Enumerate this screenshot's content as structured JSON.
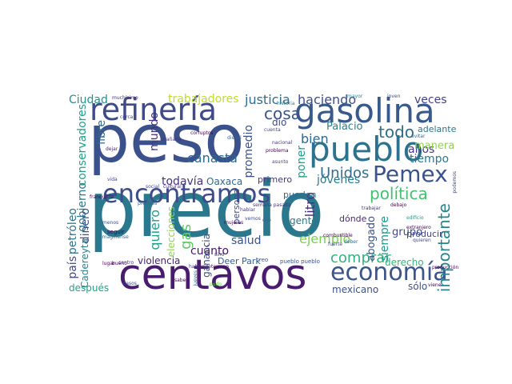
{
  "cloud": {
    "words": [
      {
        "text": "precio",
        "color": "#2a788e"
      },
      {
        "text": "peso",
        "color": "#3b518b"
      },
      {
        "text": "centavos",
        "color": "#481c6e"
      },
      {
        "text": "gasolina",
        "color": "#38598c"
      },
      {
        "text": "refinería",
        "color": "#3e4a89"
      },
      {
        "text": "pueblo",
        "color": "#2c728e"
      },
      {
        "text": "encontramos",
        "color": "#3e4c8a"
      },
      {
        "text": "economía",
        "color": "#3a548c"
      },
      {
        "text": "Pemex",
        "color": "#3b528b"
      },
      {
        "text": "política",
        "color": "#44bf70"
      },
      {
        "text": "importante",
        "color": "#24868e"
      },
      {
        "text": "comprar",
        "color": "#2fb47c"
      },
      {
        "text": "ejemplo",
        "color": "#7ad151"
      },
      {
        "text": "Unidos",
        "color": "#2e6f8e"
      },
      {
        "text": "todo",
        "color": "#2d708e"
      },
      {
        "text": "cosa",
        "color": "#3a538b"
      },
      {
        "text": "haciendo",
        "color": "#3c4f8a"
      },
      {
        "text": "justicia",
        "color": "#2e6e8e"
      },
      {
        "text": "trabajadores",
        "color": "#bddf26"
      },
      {
        "text": "veces",
        "color": "#414287"
      },
      {
        "text": "Ciudad",
        "color": "#21918c"
      },
      {
        "text": "conservadores",
        "color": "#1fa187"
      },
      {
        "text": "gobierno",
        "color": "#2a788e"
      },
      {
        "text": "mundo",
        "color": "#46337e"
      },
      {
        "text": "libre",
        "color": "#31688e"
      },
      {
        "text": "dinero",
        "color": "#3b528b"
      },
      {
        "text": "petróleo",
        "color": "#2c728e"
      },
      {
        "text": "país",
        "color": "#3f4788"
      },
      {
        "text": "Cadereyta",
        "color": "#26828e"
      },
      {
        "text": "quiero",
        "color": "#1f9e89"
      },
      {
        "text": "canasta",
        "color": "#31688e"
      },
      {
        "text": "todavía",
        "color": "#46327e"
      },
      {
        "text": "gas",
        "color": "#5ec962"
      },
      {
        "text": "Oaxaca",
        "color": "#31688e"
      },
      {
        "text": "promedio",
        "color": "#3b528b"
      },
      {
        "text": "dio",
        "color": "#3e4989"
      },
      {
        "text": "bien",
        "color": "#31688e"
      },
      {
        "text": "litro",
        "color": "#472d7b"
      },
      {
        "text": "jóvenes",
        "color": "#2a788e"
      },
      {
        "text": "años",
        "color": "#443a83"
      },
      {
        "text": "tiempo",
        "color": "#2a788e"
      },
      {
        "text": "manera",
        "color": "#8fd744"
      },
      {
        "text": "Palacio",
        "color": "#25848e"
      },
      {
        "text": "adelante",
        "color": "#2a788e"
      },
      {
        "text": "siempre",
        "color": "#1f9a8a"
      },
      {
        "text": "dónde",
        "color": "#482878"
      },
      {
        "text": "abogado",
        "color": "#3b528b"
      },
      {
        "text": "grupo",
        "color": "#3e4989"
      },
      {
        "text": "derecho",
        "color": "#35b779"
      },
      {
        "text": "sólo",
        "color": "#3b528b"
      },
      {
        "text": "mexicano",
        "color": "#3b528b"
      },
      {
        "text": "gente",
        "color": "#2a788e"
      },
      {
        "text": "pueden",
        "color": "#31688e"
      },
      {
        "text": "primero",
        "color": "#443983"
      },
      {
        "text": "salud",
        "color": "#3b528b"
      },
      {
        "text": "cuánto",
        "color": "#471365"
      },
      {
        "text": "ganancia",
        "color": "#3e4989"
      },
      {
        "text": "persona",
        "color": "#3e4989"
      },
      {
        "text": "después",
        "color": "#20a486"
      },
      {
        "text": "violencia",
        "color": "#482475"
      },
      {
        "text": "Deer Park",
        "color": "#35608d"
      },
      {
        "text": "poner",
        "color": "#1f9e89"
      },
      {
        "text": "producir",
        "color": "#3e4989"
      },
      {
        "text": "seguir",
        "color": "#440154"
      },
      {
        "text": "creo",
        "color": "#3b528b"
      },
      {
        "text": "pueblo pueblo",
        "color": "#3b528b"
      },
      {
        "text": "mañana",
        "color": "#46337e"
      },
      {
        "text": "dejar",
        "color": "#482878"
      },
      {
        "text": "sino",
        "color": "#46337e"
      },
      {
        "text": "dijo",
        "color": "#31688e"
      },
      {
        "text": "vida",
        "color": "#3e4989"
      },
      {
        "text": "social",
        "color": "#3e4989"
      },
      {
        "text": "bueno",
        "color": "#440154"
      },
      {
        "text": "lugar",
        "color": "#440154"
      },
      {
        "text": "casos",
        "color": "#3e4989"
      },
      {
        "text": "hablar",
        "color": "#46337e"
      },
      {
        "text": "pudo",
        "color": "#6ece58"
      },
      {
        "text": "muchísimo",
        "color": "#46337e"
      },
      {
        "text": "cuenta",
        "color": "#3e4989"
      },
      {
        "text": "cerca",
        "color": "#3e4989"
      },
      {
        "text": "diésel",
        "color": "#31688e"
      },
      {
        "text": "problema",
        "color": "#440154"
      },
      {
        "text": "asunto",
        "color": "#3e4989"
      },
      {
        "text": "corruptos",
        "color": "#440154"
      },
      {
        "text": "cultural",
        "color": "#46337e"
      },
      {
        "text": "combustible",
        "color": "#440154"
      },
      {
        "text": "fuerte",
        "color": "#3e4989"
      },
      {
        "text": "extranjero",
        "color": "#440154"
      },
      {
        "text": "semana pasada",
        "color": "#46337e"
      },
      {
        "text": "viene",
        "color": "#440154"
      },
      {
        "text": "menos",
        "color": "#3e4989"
      },
      {
        "text": "mujeres",
        "color": "#440154"
      },
      {
        "text": "deber",
        "color": "#31688e"
      },
      {
        "text": "historia",
        "color": "#26828e"
      },
      {
        "text": "joven",
        "color": "#3e4989"
      },
      {
        "text": "imaginense",
        "color": "#31688e"
      },
      {
        "text": "saben",
        "color": "#440154"
      },
      {
        "text": "terreno",
        "color": "#440154"
      },
      {
        "text": "vemos",
        "color": "#3e4989"
      },
      {
        "text": "hablando",
        "color": "#46337e"
      },
      {
        "text": "elecciones",
        "color": "#8fd744"
      },
      {
        "text": "franquicia",
        "color": "#440154"
      },
      {
        "text": "premios",
        "color": "#31688e"
      },
      {
        "text": "edificio",
        "color": "#1f9e89"
      },
      {
        "text": "trabajar",
        "color": "#46337e"
      },
      {
        "text": "podemos",
        "color": "#3e4989"
      },
      {
        "text": "evitar",
        "color": "#31688e"
      },
      {
        "text": "quieren",
        "color": "#3e4989"
      },
      {
        "text": "nacional",
        "color": "#46337e"
      },
      {
        "text": "mayor",
        "color": "#26828e"
      },
      {
        "text": "producción",
        "color": "#440154"
      },
      {
        "text": "debajo",
        "color": "#440154"
      },
      {
        "text": "jueves",
        "color": "#31688e"
      },
      {
        "text": "centro",
        "color": "#46337e"
      }
    ]
  }
}
